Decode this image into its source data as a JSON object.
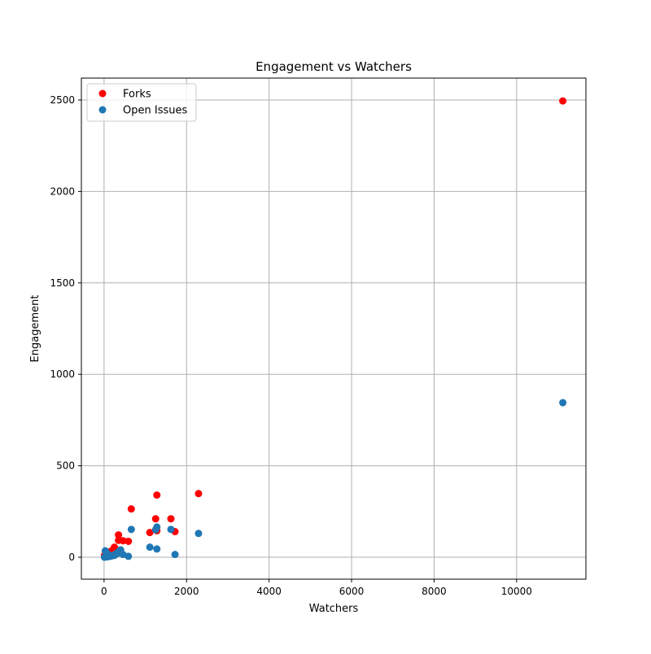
{
  "chart_data": {
    "type": "scatter",
    "title": "Engagement vs Watchers",
    "xlabel": "Watchers",
    "ylabel": "Engagement",
    "xlim": [
      -550,
      11680
    ],
    "ylim": [
      -120,
      2620
    ],
    "x_ticks": [
      0,
      2000,
      4000,
      6000,
      8000,
      10000
    ],
    "y_ticks": [
      0,
      500,
      1000,
      1500,
      2000,
      2500
    ],
    "grid": true,
    "legend_position": "top-left",
    "series": [
      {
        "name": "Forks",
        "color": "#ff0000",
        "points": [
          [
            11120,
            2495
          ],
          [
            2290,
            348
          ],
          [
            1280,
            340
          ],
          [
            660,
            264
          ],
          [
            1250,
            210
          ],
          [
            1620,
            210
          ],
          [
            1280,
            145
          ],
          [
            1720,
            140
          ],
          [
            1110,
            135
          ],
          [
            350,
            122
          ],
          [
            350,
            92
          ],
          [
            460,
            90
          ],
          [
            590,
            87
          ],
          [
            250,
            55
          ],
          [
            200,
            38
          ],
          [
            150,
            30
          ],
          [
            100,
            25
          ],
          [
            60,
            20
          ],
          [
            30,
            15
          ],
          [
            10,
            10
          ],
          [
            400,
            40
          ],
          [
            320,
            30
          ],
          [
            280,
            20
          ],
          [
            130,
            12
          ],
          [
            70,
            8
          ]
        ]
      },
      {
        "name": "Open Issues",
        "color": "#1f77b4",
        "points": [
          [
            11120,
            845
          ],
          [
            2290,
            130
          ],
          [
            1280,
            165
          ],
          [
            1250,
            150
          ],
          [
            660,
            152
          ],
          [
            1620,
            152
          ],
          [
            1110,
            55
          ],
          [
            1280,
            45
          ],
          [
            1720,
            15
          ],
          [
            590,
            5
          ],
          [
            400,
            40
          ],
          [
            350,
            30
          ],
          [
            320,
            20
          ],
          [
            460,
            15
          ],
          [
            250,
            10
          ],
          [
            200,
            8
          ],
          [
            150,
            5
          ],
          [
            100,
            3
          ],
          [
            60,
            25
          ],
          [
            30,
            35
          ],
          [
            10,
            0
          ],
          [
            130,
            12
          ],
          [
            280,
            18
          ],
          [
            70,
            2
          ],
          [
            40,
            5
          ]
        ]
      }
    ]
  }
}
